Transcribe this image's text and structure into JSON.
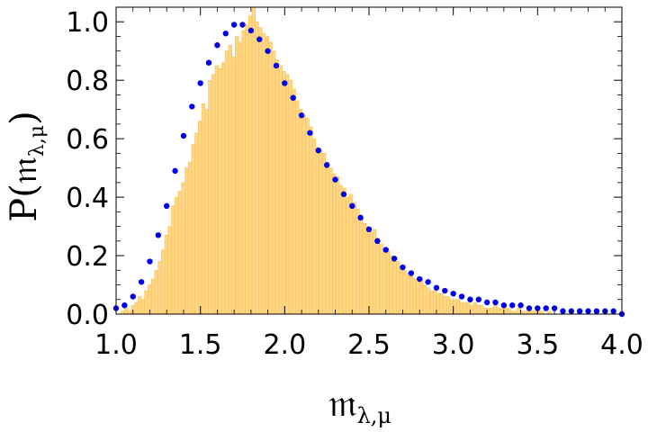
{
  "chart_data": {
    "type": "bar",
    "xlabel": "𝔪",
    "xlabel_subscript": "λ,μ",
    "ylabel": "P(𝔪",
    "ylabel_subscript": "λ,μ",
    "ylabel_close": ")",
    "xlim": [
      1.0,
      4.0
    ],
    "ylim": [
      0.0,
      1.05
    ],
    "xticks": [
      "1.0",
      "1.5",
      "2.0",
      "2.5",
      "3.0",
      "3.5",
      "4.0"
    ],
    "xtick_values": [
      1.0,
      1.5,
      2.0,
      2.5,
      3.0,
      3.5,
      4.0
    ],
    "yticks": [
      "0.0",
      "0.2",
      "0.4",
      "0.6",
      "0.8",
      "1.0"
    ],
    "ytick_values": [
      0.0,
      0.2,
      0.4,
      0.6,
      0.8,
      1.0
    ],
    "grid": false,
    "histogram": {
      "bin_start": 1.01,
      "bin_width": 0.0199,
      "values": [
        0.0,
        0.01,
        0.02,
        0.01,
        0.03,
        0.04,
        0.06,
        0.05,
        0.08,
        0.1,
        0.12,
        0.15,
        0.18,
        0.22,
        0.27,
        0.3,
        0.37,
        0.4,
        0.42,
        0.45,
        0.5,
        0.52,
        0.58,
        0.62,
        0.66,
        0.72,
        0.7,
        0.8,
        0.82,
        0.85,
        0.84,
        0.86,
        0.9,
        0.92,
        0.88,
        0.95,
        0.93,
        0.97,
        0.99,
        1.02,
        1.05,
        1.0,
        0.98,
        0.96,
        0.95,
        0.93,
        0.9,
        0.87,
        0.85,
        0.83,
        0.82,
        0.8,
        0.77,
        0.73,
        0.7,
        0.68,
        0.67,
        0.64,
        0.6,
        0.57,
        0.56,
        0.55,
        0.52,
        0.5,
        0.48,
        0.47,
        0.44,
        0.43,
        0.4,
        0.41,
        0.38,
        0.36,
        0.33,
        0.31,
        0.3,
        0.28,
        0.29,
        0.26,
        0.24,
        0.22,
        0.22,
        0.2,
        0.18,
        0.18,
        0.16,
        0.15,
        0.14,
        0.13,
        0.12,
        0.11,
        0.12,
        0.1,
        0.09,
        0.08,
        0.08,
        0.07,
        0.07,
        0.06,
        0.06,
        0.05,
        0.05,
        0.05,
        0.04,
        0.04,
        0.04,
        0.03,
        0.04,
        0.03,
        0.03,
        0.02,
        0.02,
        0.02,
        0.03,
        0.02,
        0.02,
        0.02,
        0.02,
        0.01,
        0.01,
        0.02,
        0.01,
        0.01,
        0.01,
        0.01,
        0.01,
        0.01,
        0.01,
        0.0,
        0.01,
        0.0,
        0.0,
        0.0,
        0.0,
        0.0,
        0.0,
        0.0,
        0.0,
        0.0,
        0.0,
        0.0,
        0.0,
        0.0,
        0.0,
        0.0,
        0.0,
        0.0,
        0.0
      ],
      "color": "#ffd684",
      "edge_color": "#f7c35e"
    },
    "series": [
      {
        "x": [
          1.0,
          1.05,
          1.1,
          1.15,
          1.2,
          1.25,
          1.3,
          1.35,
          1.4,
          1.45,
          1.5,
          1.55,
          1.6,
          1.65,
          1.7,
          1.75,
          1.8,
          1.85,
          1.9,
          1.95,
          2.0,
          2.05,
          2.1,
          2.15,
          2.2,
          2.25,
          2.3,
          2.35,
          2.4,
          2.45,
          2.5,
          2.55,
          2.6,
          2.65,
          2.7,
          2.75,
          2.8,
          2.85,
          2.9,
          2.95,
          3.0,
          3.05,
          3.1,
          3.15,
          3.2,
          3.25,
          3.3,
          3.35,
          3.4,
          3.45,
          3.5,
          3.55,
          3.6,
          3.65,
          3.7,
          3.75,
          3.8,
          3.85,
          3.9,
          3.95,
          4.0
        ],
        "y": [
          0.02,
          0.03,
          0.06,
          0.11,
          0.18,
          0.27,
          0.37,
          0.49,
          0.61,
          0.71,
          0.79,
          0.86,
          0.92,
          0.96,
          0.99,
          0.99,
          0.97,
          0.94,
          0.9,
          0.85,
          0.79,
          0.74,
          0.68,
          0.62,
          0.56,
          0.51,
          0.46,
          0.41,
          0.37,
          0.33,
          0.29,
          0.25,
          0.22,
          0.19,
          0.16,
          0.14,
          0.12,
          0.11,
          0.09,
          0.08,
          0.07,
          0.06,
          0.05,
          0.05,
          0.04,
          0.04,
          0.03,
          0.03,
          0.03,
          0.02,
          0.02,
          0.02,
          0.02,
          0.01,
          0.01,
          0.01,
          0.01,
          0.01,
          0.01,
          0.01,
          0.0
        ],
        "color": "#0000ee"
      }
    ]
  }
}
